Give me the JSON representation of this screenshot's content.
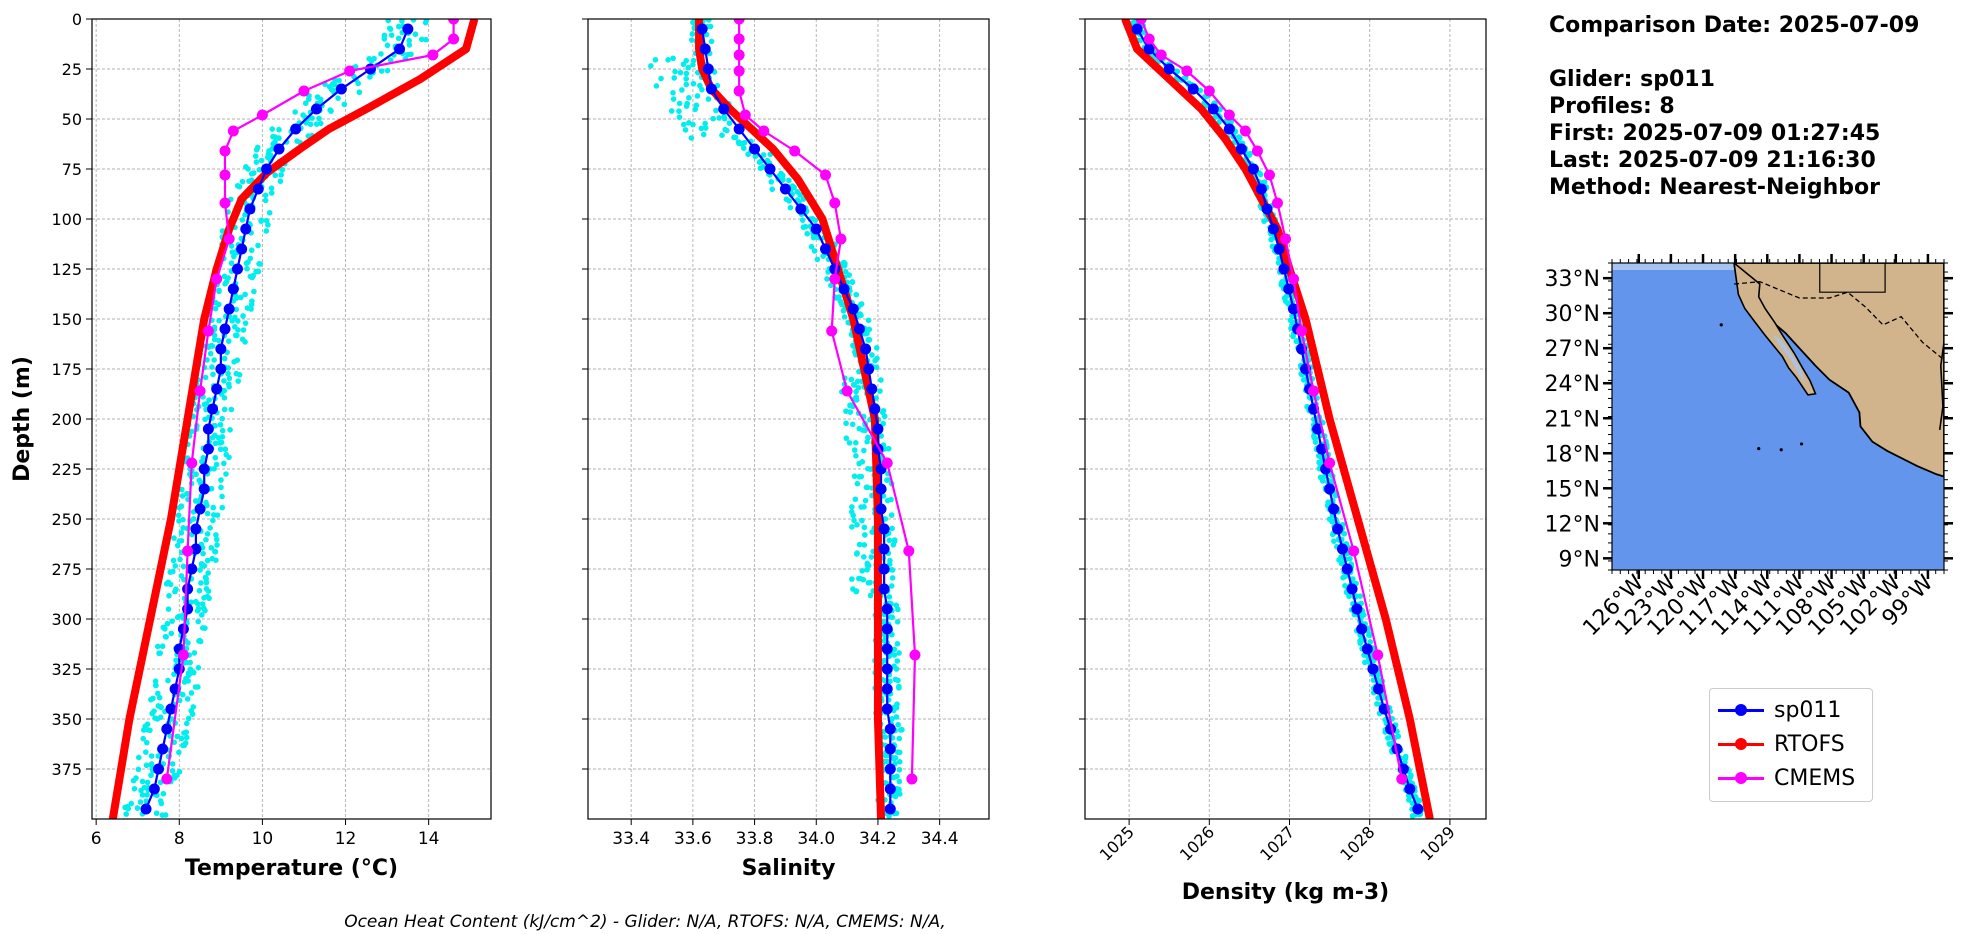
{
  "info": {
    "comparison_date": "Comparison Date: 2025-07-09",
    "glider": "Glider: sp011",
    "profiles": "Profiles: 8",
    "first": "First: 2025-07-09 01:27:45",
    "last": "Last: 2025-07-09 21:16:30",
    "method": "Method: Nearest-Neighbor"
  },
  "footer": "Ocean Heat Content (kJ/cm^2) - Glider: N/A,  RTOFS: N/A,  CMEMS: N/A,",
  "legend": [
    {
      "label": "sp011",
      "color": "#0000ff"
    },
    {
      "label": "RTOFS",
      "color": "#ff0000"
    },
    {
      "label": "CMEMS",
      "color": "#ff00ff"
    }
  ],
  "colors": {
    "glider_scatter": "#00eeee",
    "glider": "#0000ff",
    "rtofs": "#ff0000",
    "cmems": "#ff00ff",
    "ocean": "#6495ed",
    "land": "#d2b48c",
    "lake": "#a6c4ef"
  },
  "chart_data": [
    {
      "type": "line",
      "title": "",
      "xlabel": "Temperature (°C)",
      "ylabel": "Depth (m)",
      "xlim": [
        5.9,
        15.5
      ],
      "ylim": [
        400,
        0
      ],
      "xticks": [
        6,
        8,
        10,
        12,
        14
      ],
      "yticks": [
        0,
        25,
        50,
        75,
        100,
        125,
        150,
        175,
        200,
        225,
        250,
        275,
        300,
        325,
        350,
        375
      ],
      "grid": true,
      "series": [
        {
          "name": "sp011",
          "depth": [
            5,
            15,
            25,
            35,
            45,
            55,
            65,
            75,
            85,
            95,
            105,
            115,
            125,
            135,
            145,
            155,
            165,
            175,
            185,
            195,
            205,
            215,
            225,
            235,
            245,
            255,
            265,
            275,
            285,
            295,
            305,
            315,
            325,
            335,
            345,
            355,
            365,
            375,
            385,
            395
          ],
          "values": [
            13.5,
            13.3,
            12.6,
            11.9,
            11.3,
            10.8,
            10.4,
            10.1,
            9.9,
            9.7,
            9.6,
            9.5,
            9.4,
            9.3,
            9.2,
            9.1,
            9.0,
            9.0,
            8.9,
            8.8,
            8.7,
            8.7,
            8.6,
            8.6,
            8.5,
            8.4,
            8.4,
            8.3,
            8.2,
            8.2,
            8.1,
            8.0,
            8.0,
            7.9,
            7.8,
            7.7,
            7.6,
            7.5,
            7.4,
            7.2
          ]
        },
        {
          "name": "RTOFS",
          "depth": [
            0,
            15,
            30,
            45,
            55,
            65,
            77,
            90,
            105,
            125,
            150,
            200,
            250,
            300,
            350,
            400
          ],
          "values": [
            15.1,
            14.9,
            13.8,
            12.5,
            11.6,
            10.9,
            10.1,
            9.5,
            9.2,
            8.9,
            8.6,
            8.2,
            7.8,
            7.3,
            6.8,
            6.4
          ]
        },
        {
          "name": "CMEMS",
          "depth": [
            0,
            10,
            18,
            26,
            36,
            48,
            56,
            66,
            78,
            92,
            110,
            130,
            156,
            186,
            222,
            266,
            318,
            380
          ],
          "values": [
            14.6,
            14.6,
            14.1,
            12.1,
            11.0,
            10.0,
            9.3,
            9.1,
            9.1,
            9.1,
            9.2,
            8.9,
            8.7,
            8.5,
            8.3,
            8.2,
            8.1,
            7.7
          ]
        }
      ]
    },
    {
      "type": "line",
      "title": "",
      "xlabel": "Salinity",
      "ylabel": "",
      "xlim": [
        33.26,
        34.56
      ],
      "ylim": [
        400,
        0
      ],
      "xticks": [
        33.4,
        33.6,
        33.8,
        34.0,
        34.2,
        34.4
      ],
      "xticklabels": [
        "33.4",
        "33.6",
        "33.8",
        "34.0",
        "34.2",
        "34.4"
      ],
      "grid": true,
      "series": [
        {
          "name": "sp011",
          "depth": [
            5,
            15,
            25,
            35,
            45,
            55,
            65,
            75,
            85,
            95,
            105,
            115,
            125,
            135,
            145,
            155,
            165,
            175,
            185,
            195,
            205,
            215,
            225,
            235,
            245,
            255,
            265,
            275,
            285,
            295,
            305,
            315,
            325,
            335,
            345,
            355,
            365,
            375,
            385,
            395
          ],
          "values": [
            33.63,
            33.64,
            33.65,
            33.66,
            33.7,
            33.75,
            33.8,
            33.85,
            33.9,
            33.95,
            34.0,
            34.03,
            34.06,
            34.09,
            34.12,
            34.14,
            34.16,
            34.17,
            34.18,
            34.19,
            34.2,
            34.2,
            34.21,
            34.21,
            34.21,
            34.22,
            34.22,
            34.22,
            34.22,
            34.23,
            34.23,
            34.23,
            34.23,
            34.23,
            34.23,
            34.24,
            34.24,
            34.24,
            34.24,
            34.24
          ]
        },
        {
          "name": "RTOFS",
          "depth": [
            0,
            15,
            25,
            35,
            45,
            55,
            65,
            80,
            100,
            125,
            150,
            200,
            250,
            300,
            350,
            400
          ],
          "values": [
            33.62,
            33.62,
            33.63,
            33.66,
            33.72,
            33.79,
            33.86,
            33.94,
            34.02,
            34.07,
            34.12,
            34.19,
            34.2,
            34.2,
            34.2,
            34.21
          ]
        },
        {
          "name": "CMEMS",
          "depth": [
            0,
            10,
            18,
            26,
            36,
            48,
            56,
            66,
            78,
            92,
            110,
            130,
            156,
            186,
            222,
            266,
            318,
            380
          ],
          "values": [
            33.75,
            33.75,
            33.75,
            33.75,
            33.75,
            33.77,
            33.83,
            33.93,
            34.03,
            34.06,
            34.08,
            34.06,
            34.05,
            34.1,
            34.23,
            34.3,
            34.32,
            34.31
          ]
        }
      ]
    },
    {
      "type": "line",
      "title": "",
      "xlabel": "Density (kg m-3)",
      "ylabel": "",
      "xlim": [
        1024.45,
        1029.45
      ],
      "ylim": [
        400,
        0
      ],
      "xticks": [
        1025,
        1026,
        1027,
        1028,
        1029
      ],
      "grid": true,
      "series": [
        {
          "name": "sp011",
          "depth": [
            5,
            15,
            25,
            35,
            45,
            55,
            65,
            75,
            85,
            95,
            105,
            115,
            125,
            135,
            145,
            155,
            165,
            175,
            185,
            195,
            205,
            215,
            225,
            235,
            245,
            255,
            265,
            275,
            285,
            295,
            305,
            315,
            325,
            335,
            345,
            355,
            365,
            375,
            385,
            395
          ],
          "values": [
            1025.1,
            1025.25,
            1025.5,
            1025.8,
            1026.05,
            1026.25,
            1026.4,
            1026.55,
            1026.65,
            1026.72,
            1026.8,
            1026.87,
            1026.93,
            1026.99,
            1027.05,
            1027.1,
            1027.15,
            1027.2,
            1027.25,
            1027.3,
            1027.35,
            1027.4,
            1027.45,
            1027.5,
            1027.55,
            1027.6,
            1027.66,
            1027.72,
            1027.78,
            1027.84,
            1027.9,
            1027.97,
            1028.04,
            1028.11,
            1028.18,
            1028.26,
            1028.34,
            1028.42,
            1028.5,
            1028.6
          ]
        },
        {
          "name": "RTOFS",
          "depth": [
            0,
            15,
            30,
            45,
            60,
            75,
            90,
            105,
            125,
            150,
            200,
            250,
            300,
            350,
            400
          ],
          "values": [
            1024.95,
            1025.1,
            1025.5,
            1025.9,
            1026.2,
            1026.45,
            1026.65,
            1026.85,
            1027.0,
            1027.2,
            1027.5,
            1027.85,
            1028.2,
            1028.5,
            1028.75
          ]
        },
        {
          "name": "CMEMS",
          "depth": [
            0,
            10,
            18,
            26,
            36,
            48,
            56,
            66,
            78,
            92,
            110,
            130,
            156,
            186,
            222,
            266,
            318,
            380
          ],
          "values": [
            1025.15,
            1025.25,
            1025.4,
            1025.72,
            1026.0,
            1026.25,
            1026.45,
            1026.6,
            1026.75,
            1026.85,
            1026.95,
            1027.05,
            1027.15,
            1027.3,
            1027.5,
            1027.8,
            1028.1,
            1028.4
          ]
        }
      ]
    },
    {
      "type": "map",
      "title": "",
      "lat_ticks": [
        "33°N",
        "30°N",
        "27°N",
        "24°N",
        "21°N",
        "18°N",
        "15°N",
        "12°N",
        "9°N"
      ],
      "lon_ticks": [
        "126°W",
        "123°W",
        "120°W",
        "117°W",
        "114°W",
        "111°W",
        "108°W",
        "105°W",
        "102°W",
        "99°W"
      ]
    }
  ]
}
